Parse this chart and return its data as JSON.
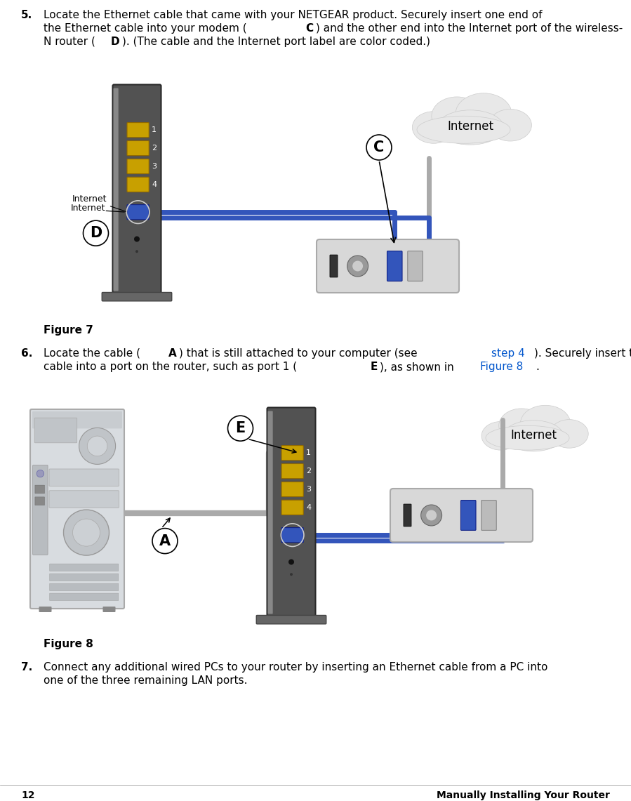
{
  "bg_color": "#ffffff",
  "cable_color_blue": "#3355bb",
  "cable_color_gray": "#999999",
  "router_body": "#525252",
  "router_edge": "#2a2a2a",
  "router_port_yellow": "#c8a000",
  "router_port_blue": "#3355bb",
  "router_stand": "#666666",
  "modem_body": "#d8d8d8",
  "modem_edge": "#aaaaaa",
  "cloud_fill": "#e8e8e8",
  "cloud_edge": "#cccccc",
  "pc_body": "#d8dce0",
  "pc_edge": "#aaaaaa",
  "label_circle_r": 15,
  "fig7_label": "Figure 7",
  "fig8_label": "Figure 8",
  "page_number": "12",
  "footer_text": "Manually Installing Your Router"
}
